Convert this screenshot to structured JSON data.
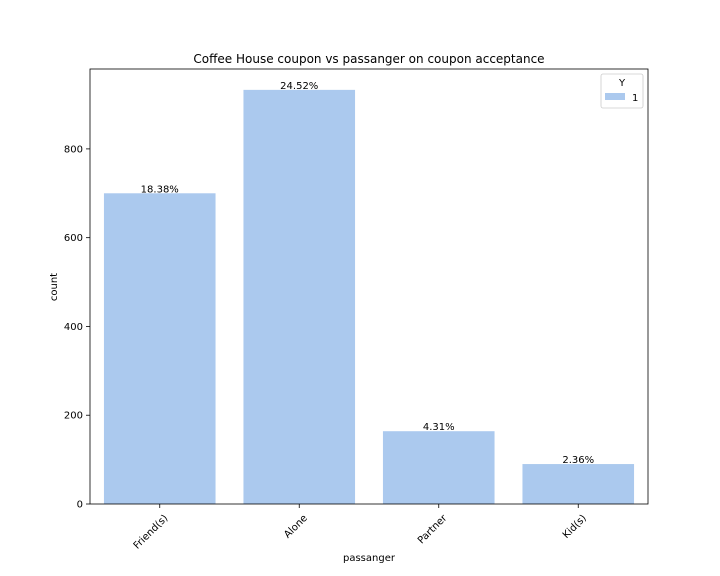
{
  "chart_data": {
    "type": "bar",
    "title": "Coffee House coupon vs passanger on coupon acceptance",
    "xlabel": "passanger",
    "ylabel": "count",
    "categories": [
      "Friend(s)",
      "Alone",
      "Partner",
      "Kid(s)"
    ],
    "series": [
      {
        "name": "1",
        "values": [
          700,
          933,
          164,
          90
        ],
        "labels": [
          "18.38%",
          "24.52%",
          "4.31%",
          "2.36%"
        ],
        "color": "#abc9ee"
      }
    ],
    "yticks": [
      0,
      200,
      400,
      600,
      800
    ],
    "ylim": [
      0,
      980
    ],
    "legend": {
      "title": "Y",
      "placement": "top-right"
    },
    "grid": false
  }
}
